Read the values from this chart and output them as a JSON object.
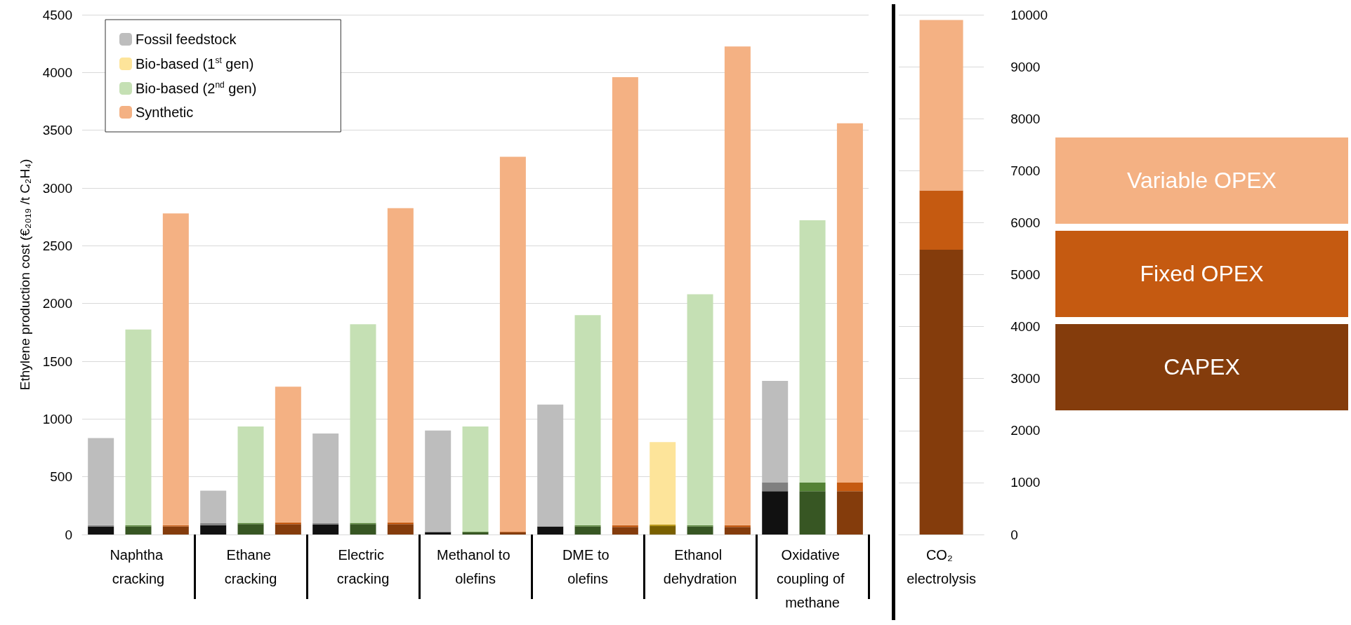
{
  "chart_data": [
    {
      "type": "bar",
      "stacked": true,
      "ylabel": "Ethylene production cost (€₂₀₁₉ /t C₂H₄)",
      "legend": "top left",
      "grid": "y",
      "categories": [
        null,
        "Naphtha cracking",
        null,
        null,
        "Ethane cracking",
        null,
        null,
        "Electric cracking",
        null,
        null,
        "Methanol to olefins",
        null,
        null,
        "DME to olefins",
        null,
        null,
        "Ethanol dehydration",
        null,
        null,
        "Oxidative coupling of methane",
        null
      ],
      "ylim": [
        0,
        4500
      ],
      "yticks": [
        0,
        500,
        1000,
        1500,
        2000,
        2500,
        3000,
        3500,
        4000,
        4500
      ],
      "series": [
        {
          "color": "#111111",
          "values": [
            70,
            null,
            null,
            80,
            null,
            null,
            85,
            null,
            null,
            20,
            null,
            null,
            70,
            null,
            null,
            null,
            null,
            null,
            375,
            null,
            null
          ]
        },
        {
          "color": "#808080",
          "values": [
            10,
            null,
            null,
            20,
            null,
            null,
            15,
            null,
            null,
            5,
            null,
            null,
            null,
            null,
            null,
            null,
            null,
            null,
            75,
            null,
            null
          ]
        },
        {
          "name": "Fossil feedstock",
          "color": "#bdbdbd",
          "values": [
            755,
            null,
            null,
            280,
            null,
            null,
            775,
            null,
            null,
            875,
            null,
            null,
            1055,
            null,
            null,
            null,
            null,
            null,
            880,
            null,
            null
          ]
        },
        {
          "color": "#7a6000",
          "values": [
            null,
            null,
            null,
            null,
            null,
            null,
            null,
            null,
            null,
            null,
            null,
            null,
            null,
            null,
            null,
            75,
            null,
            null,
            null,
            null,
            null
          ]
        },
        {
          "color": "#b08c00",
          "values": [
            null,
            null,
            null,
            null,
            null,
            null,
            null,
            null,
            null,
            null,
            null,
            null,
            null,
            null,
            null,
            10,
            null,
            null,
            null,
            null,
            null
          ]
        },
        {
          "name": "Bio-based (1$^{st}$ gen)",
          "color": "#fde49a",
          "values": [
            null,
            null,
            null,
            null,
            null,
            null,
            null,
            null,
            null,
            null,
            null,
            null,
            null,
            null,
            null,
            715,
            null,
            null,
            null,
            null,
            null
          ]
        },
        {
          "color": "#375623",
          "values": [
            null,
            70,
            null,
            null,
            90,
            null,
            null,
            90,
            null,
            null,
            20,
            null,
            null,
            70,
            null,
            null,
            70,
            null,
            null,
            375,
            null
          ]
        },
        {
          "color": "#548235",
          "values": [
            null,
            10,
            null,
            null,
            10,
            null,
            null,
            10,
            null,
            null,
            5,
            null,
            null,
            10,
            null,
            null,
            10,
            null,
            null,
            75,
            null
          ]
        },
        {
          "name": "Bio-based (2$^{nd}$ gen)",
          "color": "#c5e0b4",
          "values": [
            null,
            1695,
            null,
            null,
            835,
            null,
            null,
            1720,
            null,
            null,
            910,
            null,
            null,
            1820,
            null,
            null,
            2000,
            null,
            null,
            2270,
            null
          ]
        },
        {
          "color": "#843c0c",
          "values": [
            null,
            null,
            70,
            null,
            null,
            90,
            null,
            null,
            90,
            null,
            null,
            20,
            null,
            null,
            65,
            null,
            null,
            65,
            null,
            null,
            375
          ]
        },
        {
          "color": "#c55a11",
          "values": [
            null,
            null,
            10,
            null,
            null,
            15,
            null,
            null,
            15,
            null,
            null,
            5,
            null,
            null,
            15,
            null,
            null,
            15,
            null,
            null,
            75
          ]
        },
        {
          "name": "Synthetic",
          "color": "#f4b183",
          "values": [
            null,
            null,
            2700,
            null,
            null,
            1175,
            null,
            null,
            2720,
            null,
            null,
            3245,
            null,
            null,
            3880,
            null,
            null,
            4145,
            null,
            null,
            3110
          ]
        }
      ]
    },
    {
      "type": "bar",
      "stacked": true,
      "legend": "right",
      "grid": "y",
      "categories": [
        "CO₂ electrolysis"
      ],
      "ylim": [
        0,
        10000
      ],
      "yticks": [
        0,
        1000,
        2000,
        3000,
        4000,
        5000,
        6000,
        7000,
        8000,
        9000,
        10000
      ],
      "series": [
        {
          "name": "CAPEX",
          "color": "#843c0c",
          "values": [
            5480
          ]
        },
        {
          "name": "Fixed OPEX",
          "color": "#c55a11",
          "values": [
            1140
          ]
        },
        {
          "name": "Variable OPEX",
          "color": "#f4b183",
          "values": [
            3280
          ]
        }
      ]
    }
  ]
}
